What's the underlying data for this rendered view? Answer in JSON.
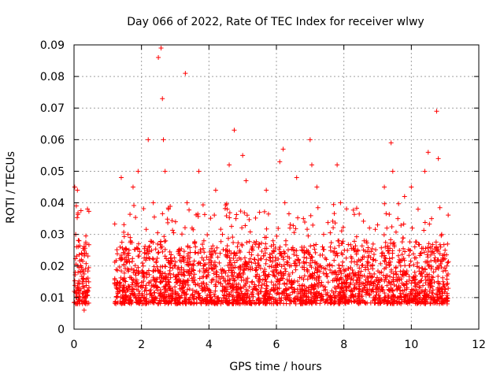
{
  "chart_data": {
    "type": "scatter",
    "title": "Day 066 of 2022, Rate Of TEC Index for receiver wlwy",
    "xlabel": "GPS time / hours",
    "ylabel": "ROTI / TECUs",
    "xlim": [
      0,
      12
    ],
    "ylim": [
      0,
      0.09
    ],
    "x_ticks": [
      0,
      2,
      4,
      6,
      8,
      10,
      12
    ],
    "x_tick_labels": [
      "0",
      "2",
      "4",
      "6",
      "8",
      "10",
      "12"
    ],
    "y_ticks": [
      0,
      0.01,
      0.02,
      0.03,
      0.04,
      0.05,
      0.06,
      0.07,
      0.08,
      0.09
    ],
    "y_tick_labels": [
      "0",
      "0.01",
      "0.02",
      "0.03",
      "0.04",
      "0.05",
      "0.06",
      "0.07",
      "0.08",
      "0.09"
    ],
    "grid": true,
    "marker": "+",
    "marker_color": "#ff0000",
    "data_segments": [
      {
        "x_start": 0.0,
        "x_end": 0.45
      },
      {
        "x_start": 1.2,
        "x_end": 11.1
      }
    ],
    "series": [
      {
        "name": "ROTI",
        "x": [
          0.02,
          0.05,
          0.1,
          0.15,
          0.2,
          0.25,
          0.3,
          0.35,
          0.4,
          0.05,
          0.12,
          0.18,
          0.22,
          0.3,
          1.25,
          1.4,
          1.6,
          1.75,
          1.9,
          2.05,
          2.2,
          2.35,
          2.5,
          2.58,
          2.62,
          2.65,
          2.7,
          2.8,
          3.0,
          3.1,
          3.3,
          3.35,
          3.5,
          3.7,
          3.85,
          4.0,
          4.2,
          4.4,
          4.6,
          4.75,
          4.8,
          5.0,
          5.1,
          5.3,
          5.5,
          5.7,
          5.9,
          6.1,
          6.2,
          6.25,
          6.4,
          6.6,
          6.8,
          7.0,
          7.05,
          7.2,
          7.4,
          7.6,
          7.8,
          7.9,
          8.1,
          8.3,
          8.6,
          8.8,
          9.0,
          9.2,
          9.4,
          9.45,
          9.6,
          9.8,
          10.0,
          10.2,
          10.4,
          10.5,
          10.6,
          10.75,
          10.8,
          10.9,
          11.0,
          11.05
        ],
        "y": [
          0.045,
          0.03,
          0.044,
          0.028,
          0.02,
          0.015,
          0.025,
          0.027,
          0.012,
          0.008,
          0.018,
          0.01,
          0.022,
          0.006,
          0.014,
          0.048,
          0.03,
          0.045,
          0.05,
          0.02,
          0.06,
          0.04,
          0.086,
          0.089,
          0.073,
          0.06,
          0.05,
          0.038,
          0.02,
          0.025,
          0.081,
          0.04,
          0.032,
          0.05,
          0.028,
          0.022,
          0.044,
          0.03,
          0.052,
          0.063,
          0.035,
          0.055,
          0.047,
          0.025,
          0.037,
          0.044,
          0.028,
          0.053,
          0.057,
          0.04,
          0.032,
          0.048,
          0.035,
          0.06,
          0.052,
          0.045,
          0.03,
          0.026,
          0.052,
          0.04,
          0.017,
          0.025,
          0.028,
          0.02,
          0.033,
          0.045,
          0.059,
          0.05,
          0.035,
          0.042,
          0.045,
          0.038,
          0.05,
          0.056,
          0.035,
          0.069,
          0.054,
          0.03,
          0.025,
          0.02
        ]
      }
    ]
  }
}
